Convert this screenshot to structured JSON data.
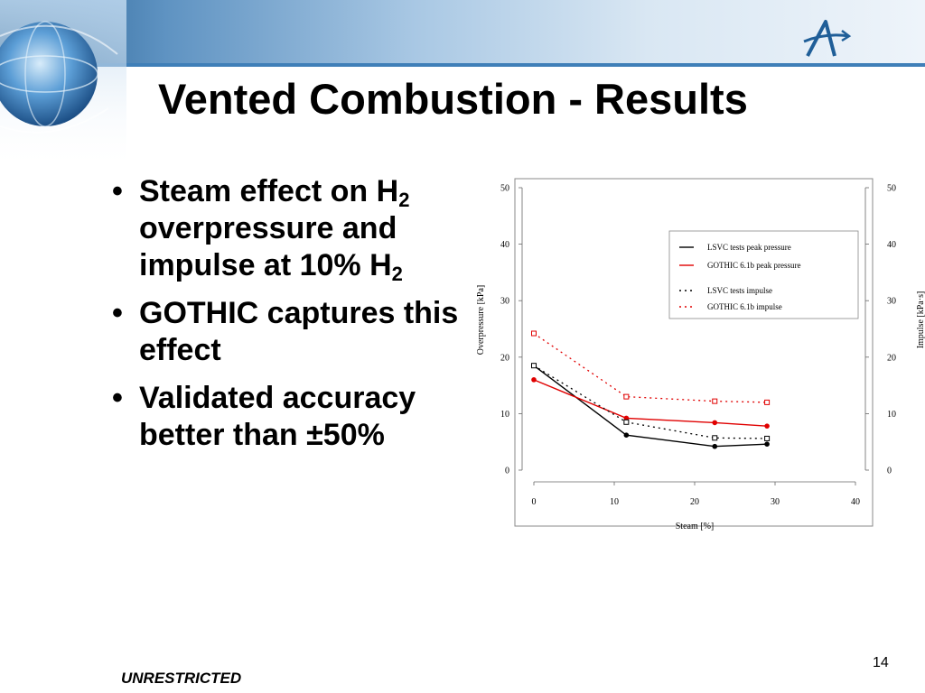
{
  "slide": {
    "title": "Vented Combustion - Results",
    "bullets": [
      {
        "parts": [
          {
            "t": "Steam effect on H"
          },
          {
            "sub": "2"
          },
          {
            "t": " overpressure and impulse at 10% H"
          },
          {
            "sub": "2"
          }
        ]
      },
      {
        "parts": [
          {
            "t": "GOTHIC captures this effect"
          }
        ]
      },
      {
        "parts": [
          {
            "t": "Validated accuracy better than ±50%"
          }
        ]
      }
    ],
    "slide_number": "14",
    "footer": "UNRESTRICTED"
  },
  "colors": {
    "lsvc": "#000000",
    "gothic": "#e00000",
    "accent": "#3f7fb8"
  },
  "icons": {
    "banner_graphic": "globe-icon",
    "logo": "company-logo-icon"
  },
  "chart_data": {
    "type": "line",
    "xlabel": "Steam [%]",
    "ylabel": "Overpressure [kPa]",
    "y2label": "Impulse [kPa·s]",
    "xlim": [
      0,
      40
    ],
    "ylim": [
      0,
      50
    ],
    "y2lim": [
      0,
      50
    ],
    "xticks": [
      0,
      10,
      20,
      30,
      40
    ],
    "yticks": [
      0,
      10,
      20,
      30,
      40,
      50
    ],
    "y2ticks": [
      0,
      10,
      20,
      30,
      40,
      50
    ],
    "grid": false,
    "legend_position": "top-right",
    "series": [
      {
        "name": "LSVC tests peak pressure",
        "axis": "left",
        "style": "solid",
        "color": "#000000",
        "marker": "filled-circle",
        "x": [
          0,
          11.5,
          22.5,
          29
        ],
        "y": [
          18.5,
          6.2,
          4.2,
          4.6
        ]
      },
      {
        "name": "GOTHIC 6.1b peak pressure",
        "axis": "left",
        "style": "solid",
        "color": "#e00000",
        "marker": "filled-circle",
        "x": [
          0,
          11.5,
          22.5,
          29
        ],
        "y": [
          16,
          9.2,
          8.4,
          7.8
        ]
      },
      {
        "name": "LSVC tests impulse",
        "axis": "right",
        "style": "dotted",
        "color": "#000000",
        "marker": "open-square",
        "x": [
          0,
          11.5,
          22.5,
          29
        ],
        "y": [
          18.5,
          8.5,
          5.7,
          5.6
        ]
      },
      {
        "name": "GOTHIC 6.1b impulse",
        "axis": "right",
        "style": "dotted",
        "color": "#e00000",
        "marker": "open-square",
        "x": [
          0,
          11.5,
          22.5,
          29
        ],
        "y": [
          24.2,
          13,
          12.2,
          12
        ]
      }
    ]
  }
}
